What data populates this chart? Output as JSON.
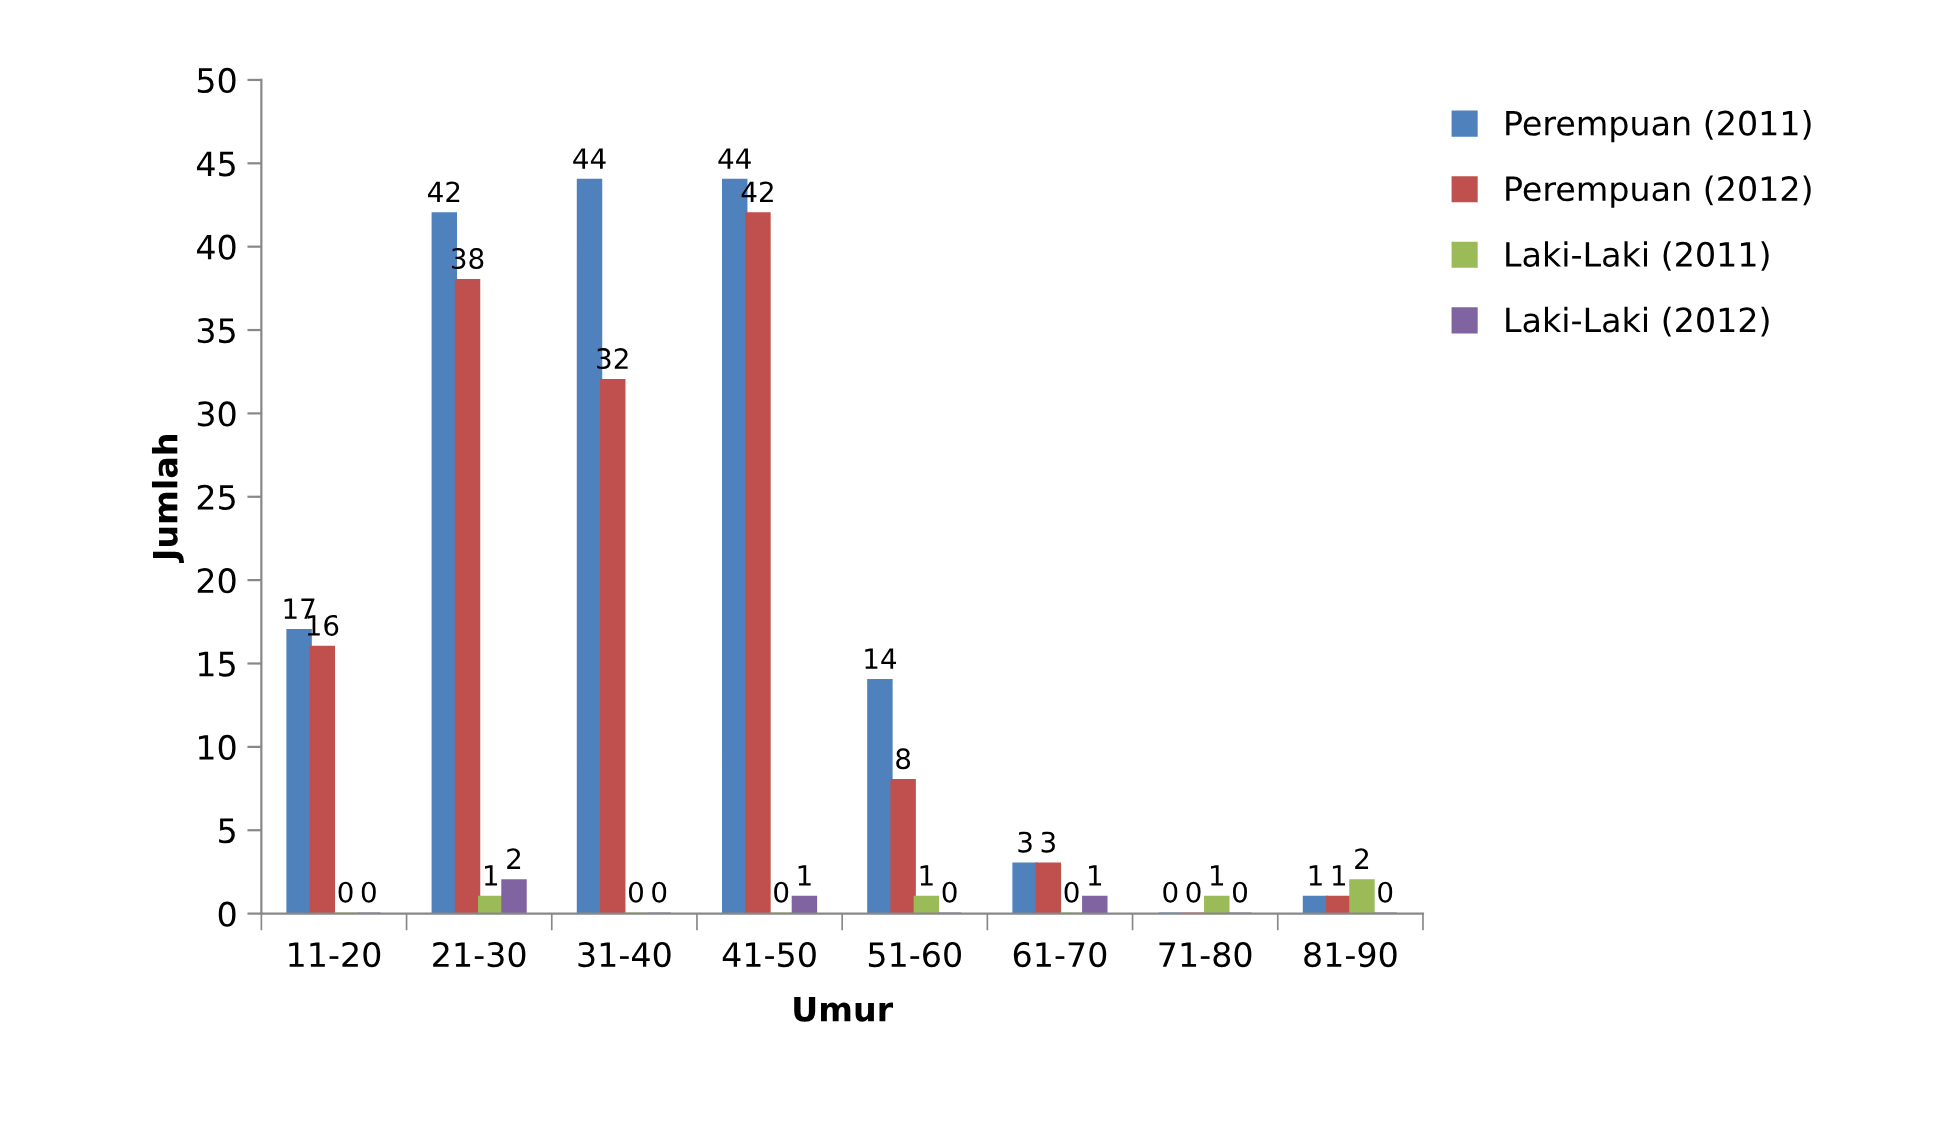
{
  "chart_data": {
    "type": "bar",
    "xlabel": "Umur",
    "ylabel": "Jumlah",
    "categories": [
      "11-20",
      "21-30",
      "31-40",
      "41-50",
      "51-60",
      "61-70",
      "71-80",
      "81-90"
    ],
    "series": [
      {
        "name": "Perempuan (2011)",
        "color": "#4f81bd",
        "values": [
          17,
          42,
          44,
          44,
          14,
          3,
          0,
          1
        ]
      },
      {
        "name": "Perempuan (2012)",
        "color": "#c0504d",
        "values": [
          16,
          38,
          32,
          42,
          8,
          3,
          0,
          1
        ]
      },
      {
        "name": "Laki-Laki (2011)",
        "color": "#9bbb59",
        "values": [
          0,
          1,
          0,
          0,
          1,
          0,
          1,
          2
        ]
      },
      {
        "name": "Laki-Laki (2012)",
        "color": "#8064a2",
        "values": [
          0,
          2,
          0,
          1,
          0,
          1,
          0,
          0
        ]
      }
    ],
    "ylim": [
      0,
      50
    ],
    "yticks": [
      0,
      5,
      10,
      15,
      20,
      25,
      30,
      35,
      40,
      45,
      50
    ],
    "grid": false,
    "legend": "right",
    "data_labels": true
  }
}
